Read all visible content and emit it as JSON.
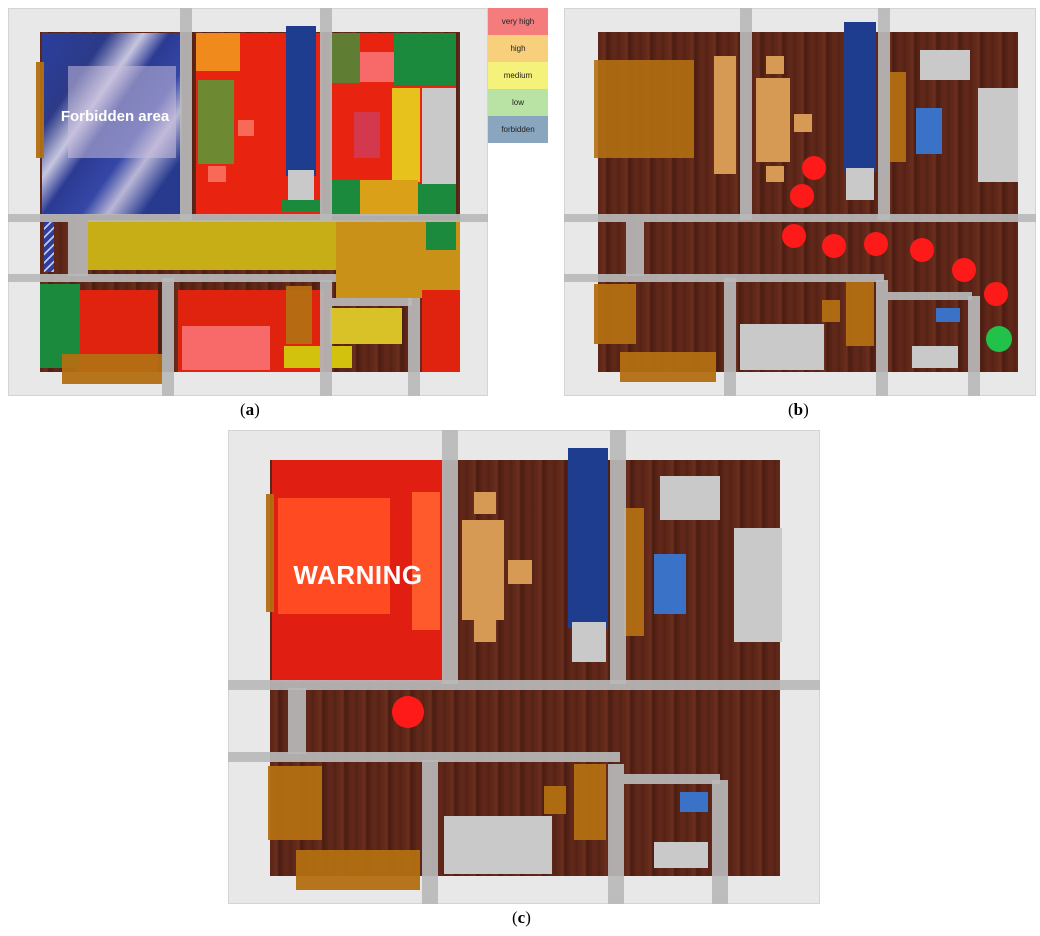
{
  "legend": {
    "items": [
      {
        "label": "very high",
        "color": "#f47c7c"
      },
      {
        "label": "high",
        "color": "#f8cf7b"
      },
      {
        "label": "medium",
        "color": "#f4f27a"
      },
      {
        "label": "low",
        "color": "#b9e3a4"
      },
      {
        "label": "forbidden",
        "color": "#8aa6bf"
      }
    ]
  },
  "panel_a": {
    "forbidden_label": "Forbidden area",
    "caption": "a"
  },
  "panel_b": {
    "caption": "b"
  },
  "panel_c": {
    "warning_label": "WARNING",
    "caption": "c"
  },
  "colors": {
    "red_marker": "#ff1a1a",
    "green_marker": "#22c24a",
    "warning_red": "#e01f12"
  }
}
